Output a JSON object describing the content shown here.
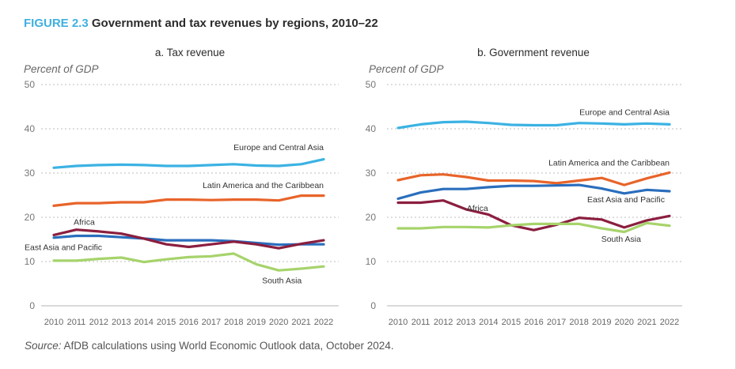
{
  "figure": {
    "number": "FIGURE 2.3",
    "title": "Government and tax revenues by regions, 2010–22",
    "number_color": "#3fb0de"
  },
  "source": {
    "label": "Source:",
    "text": " AfDB calculations using World Economic Outlook data, October 2024."
  },
  "chart_data": [
    {
      "type": "line",
      "title": "a. Tax revenue",
      "xlabel": "",
      "ylabel": "Percent of GDP",
      "ylim": [
        0,
        50
      ],
      "yticks": [
        0,
        10,
        20,
        30,
        40,
        50
      ],
      "grid": true,
      "x": [
        "2010",
        "2011",
        "2012",
        "2013",
        "2014",
        "2015",
        "2016",
        "2017",
        "2018",
        "2019",
        "2020",
        "2021",
        "2022"
      ],
      "series": [
        {
          "name": "Europe and Central Asia",
          "color": "#3bb2e3",
          "label_anchor": "end",
          "label_at": "2022",
          "label_value": 35.2,
          "values": [
            31.2,
            31.6,
            31.8,
            31.9,
            31.8,
            31.6,
            31.6,
            31.8,
            32.0,
            31.7,
            31.6,
            32.0,
            33.1
          ]
        },
        {
          "name": "Latin America and the Caribbean",
          "color": "#e8642a",
          "label_anchor": "end",
          "label_at": "2022",
          "label_value": 26.6,
          "values": [
            22.6,
            23.2,
            23.2,
            23.4,
            23.4,
            24.0,
            24.0,
            23.9,
            24.0,
            24.0,
            23.8,
            24.9,
            24.9
          ]
        },
        {
          "name": "East Asia and Pacific",
          "color": "#2a6ebd",
          "label_anchor": "start",
          "label_at": "2010",
          "label_value": 12.6,
          "label_dx": -37,
          "values": [
            15.4,
            15.8,
            15.8,
            15.5,
            15.2,
            14.8,
            14.8,
            14.8,
            14.6,
            14.2,
            13.8,
            13.9,
            13.9
          ]
        },
        {
          "name": "Africa",
          "color": "#8b1e3f",
          "label_anchor": "middle",
          "label_at": "2011",
          "label_value": 18.3,
          "label_dx": 10,
          "values": [
            16.0,
            17.2,
            16.8,
            16.3,
            15.2,
            13.9,
            13.3,
            13.9,
            14.5,
            13.9,
            13.0,
            14.0,
            14.8
          ]
        },
        {
          "name": "South Asia",
          "color": "#a6d36b",
          "label_anchor": "middle",
          "label_at": "2020",
          "label_value": 5.1,
          "label_dx": 4,
          "values": [
            10.2,
            10.2,
            10.6,
            10.9,
            9.9,
            10.5,
            11.0,
            11.2,
            11.8,
            9.4,
            8.0,
            8.4,
            8.9
          ]
        }
      ]
    },
    {
      "type": "line",
      "title": "b. Government revenue",
      "xlabel": "",
      "ylabel": "Percent of GDP",
      "ylim": [
        0,
        50
      ],
      "yticks": [
        0,
        10,
        20,
        30,
        40,
        50
      ],
      "grid": true,
      "x": [
        "2010",
        "2011",
        "2012",
        "2013",
        "2014",
        "2015",
        "2016",
        "2017",
        "2018",
        "2019",
        "2020",
        "2021",
        "2022"
      ],
      "series": [
        {
          "name": "Europe and Central Asia",
          "color": "#3bb2e3",
          "label_anchor": "end",
          "label_at": "2022",
          "label_value": 43.1,
          "values": [
            40.2,
            41.0,
            41.5,
            41.6,
            41.3,
            40.9,
            40.8,
            40.8,
            41.3,
            41.2,
            41.0,
            41.2,
            41.0
          ]
        },
        {
          "name": "Latin America and the Caribbean",
          "color": "#e8642a",
          "label_anchor": "end",
          "label_at": "2022",
          "label_value": 31.7,
          "values": [
            28.4,
            29.5,
            29.7,
            29.1,
            28.3,
            28.3,
            28.2,
            27.7,
            28.3,
            28.9,
            27.3,
            28.8,
            30.1
          ]
        },
        {
          "name": "East Asia and Pacific",
          "color": "#2a6ebd",
          "label_anchor": "end",
          "label_at": "2022",
          "label_value": 23.4,
          "label_dx": -6,
          "values": [
            24.2,
            25.6,
            26.4,
            26.4,
            26.8,
            27.1,
            27.1,
            27.2,
            27.3,
            26.5,
            25.4,
            26.2,
            25.9
          ]
        },
        {
          "name": "Africa",
          "color": "#8b1e3f",
          "label_anchor": "middle",
          "label_at": "2014",
          "label_value": 21.4,
          "label_dx": -14,
          "values": [
            23.3,
            23.3,
            23.8,
            21.8,
            20.6,
            18.2,
            17.1,
            18.3,
            19.9,
            19.5,
            17.7,
            19.3,
            20.3
          ]
        },
        {
          "name": "South Asia",
          "color": "#a6d36b",
          "label_anchor": "middle",
          "label_at": "2020",
          "label_value": 14.5,
          "label_dx": -4,
          "values": [
            17.5,
            17.5,
            17.8,
            17.8,
            17.7,
            18.2,
            18.5,
            18.5,
            18.5,
            17.5,
            16.7,
            18.7,
            18.1
          ]
        }
      ]
    }
  ]
}
